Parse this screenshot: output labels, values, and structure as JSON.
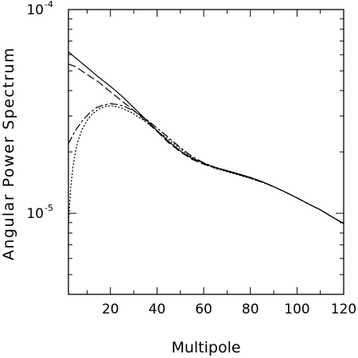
{
  "chart_data": {
    "type": "line",
    "title": "",
    "xlabel": "Multipole",
    "ylabel": "Angular Power Spectrum",
    "xlim": [
      2,
      120
    ],
    "ylim": [
      4e-06,
      0.0001
    ],
    "yscale": "log",
    "grid": false,
    "x_ticks": [
      {
        "value": 20,
        "label": "20"
      },
      {
        "value": 40,
        "label": "40"
      },
      {
        "value": 60,
        "label": "60"
      },
      {
        "value": 80,
        "label": "80"
      },
      {
        "value": 100,
        "label": "100"
      },
      {
        "value": 120,
        "label": "120"
      }
    ],
    "y_ticks": [
      {
        "value": 1e-05,
        "base": "10",
        "exp": "-5"
      },
      {
        "value": 0.0001,
        "base": "10",
        "exp": "-4"
      }
    ],
    "series": [
      {
        "style": "solid",
        "x": [
          2,
          5,
          10,
          15,
          20,
          25,
          30,
          35,
          40,
          45,
          50,
          55,
          60,
          65,
          70,
          75,
          80,
          85,
          90,
          95,
          100,
          105,
          110,
          115,
          120
        ],
        "y": [
          6.2e-05,
          5.8e-05,
          5.2e-05,
          4.65e-05,
          4.2e-05,
          3.75e-05,
          3.3e-05,
          2.9e-05,
          2.55e-05,
          2.25e-05,
          2.02e-05,
          1.86e-05,
          1.76e-05,
          1.68e-05,
          1.62e-05,
          1.56e-05,
          1.5e-05,
          1.43e-05,
          1.35e-05,
          1.27e-05,
          1.19e-05,
          1.11e-05,
          1.04e-05,
          9.6e-06,
          8.9e-06
        ]
      },
      {
        "style": "dashed",
        "x": [
          2,
          5,
          10,
          15,
          20,
          25,
          30,
          35,
          40,
          45,
          50,
          55,
          60,
          65,
          70,
          75,
          80,
          85,
          90,
          95,
          100,
          105,
          110,
          115,
          120
        ],
        "y": [
          5.4e-05,
          5.25e-05,
          4.8e-05,
          4.4e-05,
          3.95e-05,
          3.55e-05,
          3.2e-05,
          2.85e-05,
          2.52e-05,
          2.22e-05,
          2e-05,
          1.84e-05,
          1.74e-05,
          1.67e-05,
          1.61e-05,
          1.55e-05,
          1.5e-05,
          1.43e-05,
          1.35e-05,
          1.27e-05,
          1.19e-05,
          1.11e-05,
          1.04e-05,
          9.6e-06,
          8.9e-06
        ]
      },
      {
        "style": "dashdot",
        "x": [
          2,
          5,
          8,
          11,
          14,
          17,
          20,
          23,
          26,
          30,
          35,
          40,
          45,
          50,
          55,
          60,
          65,
          70,
          75,
          80,
          85,
          90,
          95,
          100,
          105,
          110,
          115,
          120
        ],
        "y": [
          2.2e-05,
          2.55e-05,
          2.85e-05,
          3.1e-05,
          3.3e-05,
          3.4e-05,
          3.45e-05,
          3.42e-05,
          3.35e-05,
          3.18e-05,
          2.92e-05,
          2.62e-05,
          2.35e-05,
          2.1e-05,
          1.9e-05,
          1.77e-05,
          1.68e-05,
          1.61e-05,
          1.55e-05,
          1.49e-05,
          1.42e-05,
          1.35e-05,
          1.27e-05,
          1.19e-05,
          1.11e-05,
          1.04e-05,
          9.6e-06,
          8.9e-06
        ]
      },
      {
        "style": "dotted",
        "x": [
          2,
          3,
          4,
          5,
          6,
          8,
          10,
          12,
          15,
          18,
          20,
          22,
          25,
          30,
          35,
          40,
          45,
          50,
          55,
          60,
          65,
          70,
          75,
          80,
          85,
          90,
          95,
          100,
          105,
          110,
          115,
          120
        ],
        "y": [
          8.8e-06,
          1.35e-05,
          1.7e-05,
          2e-05,
          2.25e-05,
          2.6e-05,
          2.85e-05,
          3.05e-05,
          3.25e-05,
          3.35e-05,
          3.37e-05,
          3.35e-05,
          3.28e-05,
          3.08e-05,
          2.82e-05,
          2.55e-05,
          2.3e-05,
          2.07e-05,
          1.88e-05,
          1.75e-05,
          1.66e-05,
          1.6e-05,
          1.54e-05,
          1.48e-05,
          1.42e-05,
          1.35e-05,
          1.27e-05,
          1.19e-05,
          1.11e-05,
          1.04e-05,
          9.6e-06,
          8.9e-06
        ]
      }
    ]
  }
}
